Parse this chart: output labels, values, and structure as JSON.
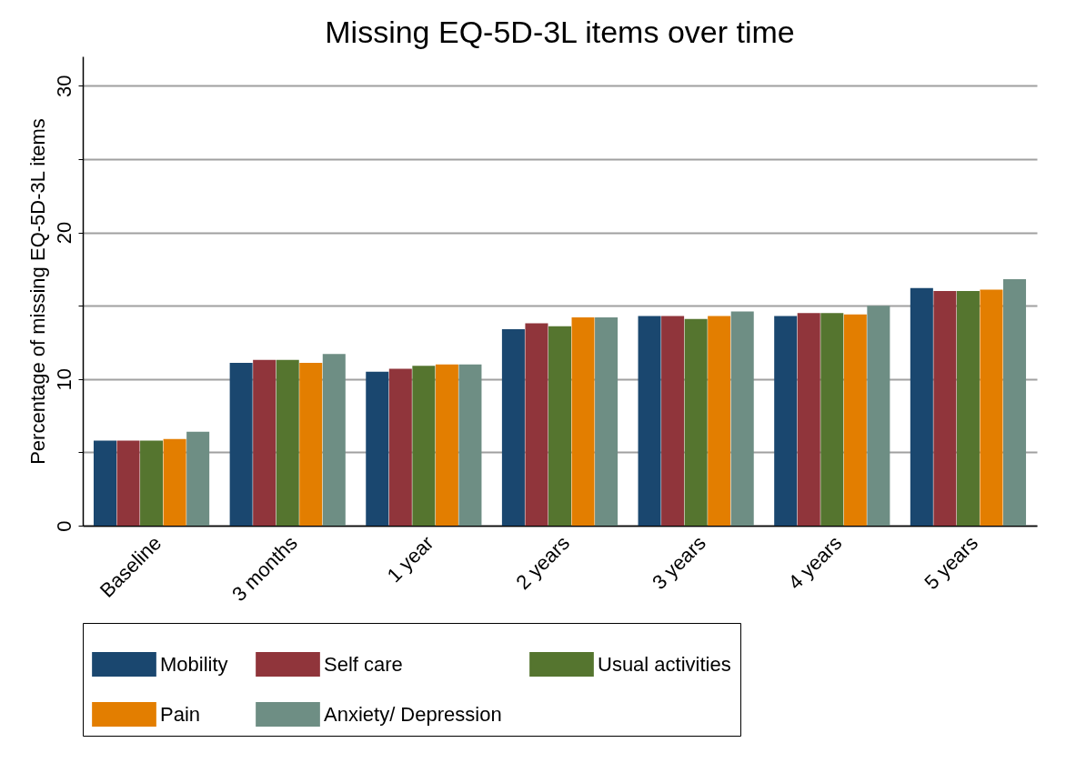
{
  "chart_data": {
    "type": "bar",
    "title": "Missing EQ-5D-3L items over time",
    "ylabel": "Percentage of missing EQ-5D-3L items",
    "categories": [
      "Baseline",
      "3 months",
      "1 year",
      "2 years",
      "3 years",
      "4 years",
      "5 years"
    ],
    "series": [
      {
        "name": "Mobility",
        "color": "#1a476f",
        "values": [
          5.8,
          11.1,
          10.5,
          13.4,
          14.3,
          14.3,
          16.2
        ]
      },
      {
        "name": "Self care",
        "color": "#90353b",
        "values": [
          5.8,
          11.3,
          10.7,
          13.8,
          14.3,
          14.5,
          16.0
        ]
      },
      {
        "name": "Usual activities",
        "color": "#55752f",
        "values": [
          5.8,
          11.3,
          10.9,
          13.6,
          14.1,
          14.5,
          16.0
        ]
      },
      {
        "name": "Pain",
        "color": "#e37e00",
        "values": [
          5.9,
          11.1,
          11.0,
          14.2,
          14.3,
          14.4,
          16.1
        ]
      },
      {
        "name": "Anxiety/ Depression",
        "color": "#6e8e84",
        "values": [
          6.4,
          11.7,
          11.0,
          14.2,
          14.6,
          15.0,
          16.8
        ]
      }
    ],
    "ylim": [
      0,
      32
    ],
    "yticks": [
      0,
      {
        "value": 5,
        "label": null
      },
      10,
      {
        "value": 15,
        "label": null
      },
      20,
      {
        "value": 25,
        "label": null
      },
      30
    ],
    "grid": "y",
    "legend": "bottom"
  }
}
